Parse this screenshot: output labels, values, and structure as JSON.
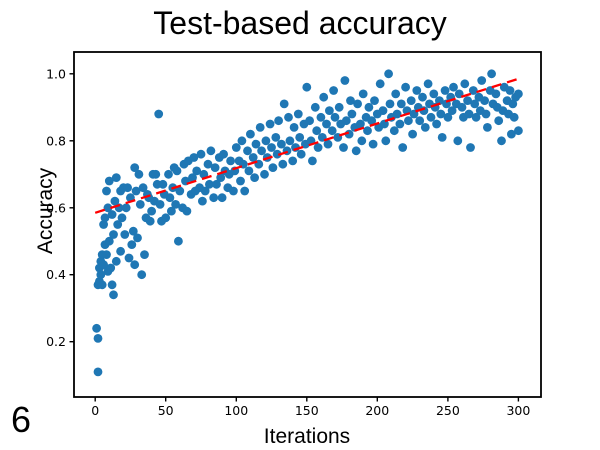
{
  "page": {
    "number": "6"
  },
  "chart_data": {
    "type": "scatter",
    "title": "Test-based accuracy",
    "xlabel": "Iterations",
    "ylabel": "Accuracy",
    "xlim": [
      -15,
      316
    ],
    "ylim": [
      0.035,
      1.065
    ],
    "grid": false,
    "legend": "none",
    "point_color": "#1f77b4",
    "trend_color": "#ff0000",
    "x_ticks": [
      {
        "value": 0,
        "label": "0"
      },
      {
        "value": 50,
        "label": "50"
      },
      {
        "value": 100,
        "label": "100"
      },
      {
        "value": 150,
        "label": "150"
      },
      {
        "value": 200,
        "label": "200"
      },
      {
        "value": 250,
        "label": "250"
      },
      {
        "value": 300,
        "label": "300"
      }
    ],
    "y_ticks": [
      {
        "value": 0.2,
        "label": "0.2"
      },
      {
        "value": 0.4,
        "label": "0.4"
      },
      {
        "value": 0.6,
        "label": "0.6"
      },
      {
        "value": 0.8,
        "label": "0.8"
      },
      {
        "value": 1.0,
        "label": "1.0"
      }
    ],
    "trend_line": {
      "style": "dashed",
      "x": [
        0,
        300
      ],
      "y": [
        0.585,
        0.985
      ]
    },
    "points": [
      [
        2,
        0.11
      ],
      [
        1,
        0.24
      ],
      [
        2,
        0.21
      ],
      [
        2,
        0.37
      ],
      [
        3,
        0.38
      ],
      [
        3,
        0.42
      ],
      [
        4,
        0.4
      ],
      [
        4,
        0.44
      ],
      [
        5,
        0.37
      ],
      [
        5,
        0.46
      ],
      [
        6,
        0.43
      ],
      [
        6,
        0.55
      ],
      [
        7,
        0.49
      ],
      [
        7,
        0.57
      ],
      [
        8,
        0.46
      ],
      [
        8,
        0.65
      ],
      [
        9,
        0.6
      ],
      [
        9,
        0.41
      ],
      [
        10,
        0.68
      ],
      [
        10,
        0.5
      ],
      [
        11,
        0.42
      ],
      [
        12,
        0.58
      ],
      [
        12,
        0.37
      ],
      [
        13,
        0.52
      ],
      [
        13,
        0.34
      ],
      [
        14,
        0.62
      ],
      [
        15,
        0.69
      ],
      [
        15,
        0.44
      ],
      [
        16,
        0.55
      ],
      [
        17,
        0.6
      ],
      [
        18,
        0.65
      ],
      [
        18,
        0.47
      ],
      [
        19,
        0.57
      ],
      [
        20,
        0.66
      ],
      [
        21,
        0.52
      ],
      [
        22,
        0.6
      ],
      [
        23,
        0.66
      ],
      [
        24,
        0.45
      ],
      [
        25,
        0.63
      ],
      [
        26,
        0.49
      ],
      [
        27,
        0.53
      ],
      [
        28,
        0.72
      ],
      [
        28,
        0.43
      ],
      [
        29,
        0.65
      ],
      [
        30,
        0.51
      ],
      [
        31,
        0.7
      ],
      [
        32,
        0.61
      ],
      [
        33,
        0.4
      ],
      [
        34,
        0.66
      ],
      [
        35,
        0.46
      ],
      [
        36,
        0.57
      ],
      [
        37,
        0.64
      ],
      [
        38,
        0.63
      ],
      [
        39,
        0.56
      ],
      [
        40,
        0.59
      ],
      [
        41,
        0.7
      ],
      [
        42,
        0.62
      ],
      [
        43,
        0.7
      ],
      [
        44,
        0.67
      ],
      [
        45,
        0.88
      ],
      [
        46,
        0.61
      ],
      [
        47,
        0.56
      ],
      [
        48,
        0.67
      ],
      [
        49,
        0.64
      ],
      [
        50,
        0.57
      ],
      [
        52,
        0.7
      ],
      [
        53,
        0.63
      ],
      [
        54,
        0.59
      ],
      [
        55,
        0.66
      ],
      [
        56,
        0.72
      ],
      [
        57,
        0.61
      ],
      [
        58,
        0.71
      ],
      [
        59,
        0.5
      ],
      [
        60,
        0.65
      ],
      [
        62,
        0.6
      ],
      [
        63,
        0.73
      ],
      [
        64,
        0.68
      ],
      [
        65,
        0.59
      ],
      [
        66,
        0.74
      ],
      [
        68,
        0.64
      ],
      [
        69,
        0.69
      ],
      [
        70,
        0.75
      ],
      [
        71,
        0.65
      ],
      [
        72,
        0.71
      ],
      [
        74,
        0.66
      ],
      [
        75,
        0.76
      ],
      [
        76,
        0.62
      ],
      [
        77,
        0.7
      ],
      [
        78,
        0.65
      ],
      [
        80,
        0.73
      ],
      [
        81,
        0.67
      ],
      [
        82,
        0.77
      ],
      [
        84,
        0.63
      ],
      [
        85,
        0.72
      ],
      [
        86,
        0.67
      ],
      [
        88,
        0.75
      ],
      [
        89,
        0.69
      ],
      [
        90,
        0.63
      ],
      [
        91,
        0.76
      ],
      [
        92,
        0.71
      ],
      [
        94,
        0.66
      ],
      [
        95,
        0.7
      ],
      [
        96,
        0.74
      ],
      [
        98,
        0.65
      ],
      [
        99,
        0.71
      ],
      [
        100,
        0.78
      ],
      [
        102,
        0.74
      ],
      [
        103,
        0.68
      ],
      [
        104,
        0.8
      ],
      [
        105,
        0.73
      ],
      [
        106,
        0.65
      ],
      [
        108,
        0.77
      ],
      [
        109,
        0.71
      ],
      [
        110,
        0.82
      ],
      [
        112,
        0.75
      ],
      [
        113,
        0.69
      ],
      [
        114,
        0.79
      ],
      [
        116,
        0.73
      ],
      [
        117,
        0.84
      ],
      [
        118,
        0.77
      ],
      [
        120,
        0.7
      ],
      [
        121,
        0.8
      ],
      [
        122,
        0.75
      ],
      [
        124,
        0.85
      ],
      [
        125,
        0.78
      ],
      [
        126,
        0.72
      ],
      [
        128,
        0.81
      ],
      [
        129,
        0.76
      ],
      [
        130,
        0.86
      ],
      [
        132,
        0.79
      ],
      [
        133,
        0.73
      ],
      [
        134,
        0.91
      ],
      [
        136,
        0.77
      ],
      [
        137,
        0.87
      ],
      [
        138,
        0.8
      ],
      [
        140,
        0.74
      ],
      [
        141,
        0.84
      ],
      [
        142,
        0.78
      ],
      [
        144,
        0.88
      ],
      [
        145,
        0.81
      ],
      [
        146,
        0.76
      ],
      [
        148,
        0.85
      ],
      [
        149,
        0.79
      ],
      [
        150,
        0.96
      ],
      [
        152,
        0.86
      ],
      [
        153,
        0.8
      ],
      [
        154,
        0.74
      ],
      [
        156,
        0.9
      ],
      [
        157,
        0.83
      ],
      [
        158,
        0.78
      ],
      [
        160,
        0.87
      ],
      [
        161,
        0.81
      ],
      [
        162,
        0.93
      ],
      [
        164,
        0.85
      ],
      [
        165,
        0.79
      ],
      [
        166,
        0.89
      ],
      [
        168,
        0.83
      ],
      [
        169,
        0.95
      ],
      [
        170,
        0.87
      ],
      [
        172,
        0.81
      ],
      [
        173,
        0.9
      ],
      [
        174,
        0.85
      ],
      [
        176,
        0.78
      ],
      [
        177,
        0.98
      ],
      [
        178,
        0.86
      ],
      [
        180,
        0.82
      ],
      [
        181,
        0.92
      ],
      [
        182,
        0.88
      ],
      [
        184,
        0.84
      ],
      [
        185,
        0.77
      ],
      [
        186,
        0.91
      ],
      [
        188,
        0.85
      ],
      [
        189,
        0.8
      ],
      [
        190,
        0.94
      ],
      [
        192,
        0.87
      ],
      [
        193,
        0.83
      ],
      [
        194,
        0.9
      ],
      [
        196,
        0.86
      ],
      [
        197,
        0.79
      ],
      [
        198,
        0.92
      ],
      [
        200,
        0.88
      ],
      [
        201,
        0.84
      ],
      [
        202,
        0.97
      ],
      [
        204,
        0.89
      ],
      [
        205,
        0.85
      ],
      [
        206,
        0.8
      ],
      [
        208,
        1.0
      ],
      [
        209,
        0.91
      ],
      [
        210,
        0.87
      ],
      [
        212,
        0.83
      ],
      [
        213,
        0.94
      ],
      [
        214,
        0.88
      ],
      [
        216,
        0.85
      ],
      [
        217,
        0.91
      ],
      [
        218,
        0.78
      ],
      [
        220,
        0.96
      ],
      [
        221,
        0.89
      ],
      [
        222,
        0.86
      ],
      [
        224,
        0.92
      ],
      [
        225,
        0.82
      ],
      [
        226,
        0.88
      ],
      [
        228,
        0.95
      ],
      [
        229,
        0.9
      ],
      [
        230,
        0.86
      ],
      [
        232,
        0.93
      ],
      [
        233,
        0.89
      ],
      [
        234,
        0.84
      ],
      [
        236,
        0.97
      ],
      [
        237,
        0.91
      ],
      [
        238,
        0.87
      ],
      [
        240,
        0.94
      ],
      [
        241,
        0.9
      ],
      [
        242,
        0.85
      ],
      [
        244,
        0.92
      ],
      [
        245,
        0.88
      ],
      [
        246,
        0.81
      ],
      [
        248,
        0.95
      ],
      [
        249,
        0.91
      ],
      [
        250,
        0.87
      ],
      [
        252,
        0.93
      ],
      [
        253,
        0.89
      ],
      [
        254,
        0.96
      ],
      [
        256,
        0.91
      ],
      [
        257,
        0.8
      ],
      [
        258,
        0.94
      ],
      [
        260,
        0.9
      ],
      [
        261,
        0.87
      ],
      [
        262,
        0.97
      ],
      [
        264,
        0.92
      ],
      [
        265,
        0.88
      ],
      [
        266,
        0.78
      ],
      [
        268,
        0.95
      ],
      [
        269,
        0.91
      ],
      [
        270,
        0.87
      ],
      [
        272,
        0.93
      ],
      [
        273,
        0.89
      ],
      [
        274,
        0.98
      ],
      [
        276,
        0.92
      ],
      [
        277,
        0.88
      ],
      [
        278,
        0.84
      ],
      [
        280,
        0.95
      ],
      [
        281,
        1.0
      ],
      [
        282,
        0.91
      ],
      [
        284,
        0.94
      ],
      [
        285,
        0.9
      ],
      [
        286,
        0.86
      ],
      [
        288,
        0.8
      ],
      [
        289,
        0.89
      ],
      [
        290,
        0.96
      ],
      [
        292,
        0.92
      ],
      [
        293,
        0.88
      ],
      [
        294,
        0.95
      ],
      [
        295,
        0.82
      ],
      [
        296,
        0.91
      ],
      [
        297,
        0.87
      ],
      [
        298,
        0.93
      ],
      [
        300,
        0.94
      ],
      [
        300,
        0.83
      ]
    ]
  }
}
